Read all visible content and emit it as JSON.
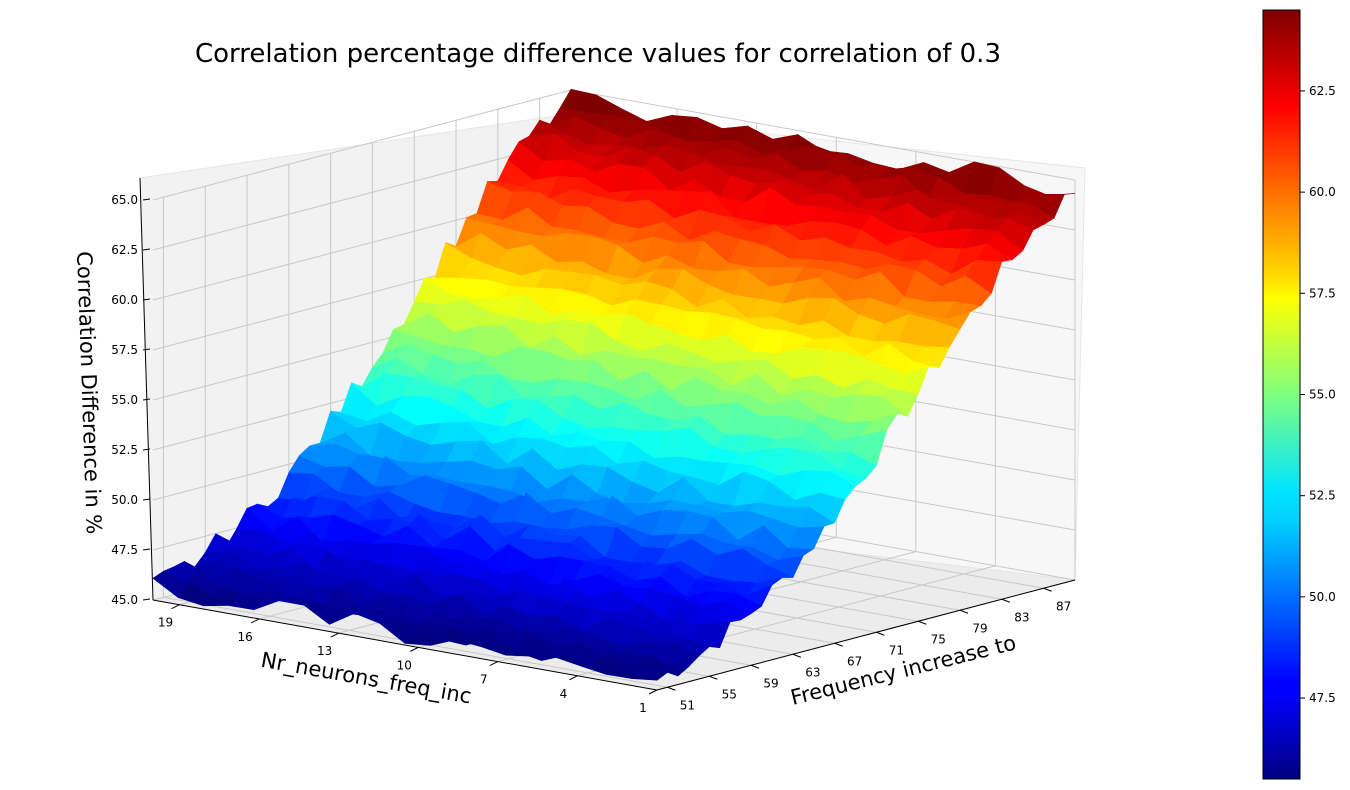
{
  "chart_data": {
    "type": "surface3d",
    "title": "Correlation percentage difference values for correlation of 0.3",
    "xlabel": "Frequency increase to",
    "ylabel": "Nr_neurons_freq_inc",
    "zlabel": "Correlation Difference in %",
    "x_ticks": [
      "51",
      "55",
      "59",
      "63",
      "67",
      "71",
      "75",
      "79",
      "83",
      "87"
    ],
    "y_ticks": [
      "1",
      "4",
      "7",
      "10",
      "13",
      "16",
      "19"
    ],
    "z_ticks": [
      "45.0",
      "47.5",
      "50.0",
      "52.5",
      "55.0",
      "57.5",
      "60.0",
      "62.5",
      "65.0"
    ],
    "x_range": [
      50,
      90
    ],
    "y_range": [
      1,
      20
    ],
    "zlim": [
      45,
      65
    ],
    "colormap": "jet",
    "grid": true,
    "colorbar": {
      "ticks": [
        "47.5",
        "50.0",
        "52.5",
        "55.0",
        "57.5",
        "60.0",
        "62.5"
      ],
      "range": [
        45.5,
        64.5
      ]
    },
    "surface_profile": {
      "x": [
        50,
        54,
        58,
        62,
        66,
        70,
        74,
        78,
        82,
        86,
        90
      ],
      "z_at_y1": [
        45.5,
        46.2,
        47.3,
        48.8,
        50.8,
        53.2,
        55.8,
        58.4,
        60.8,
        63.0,
        64.5
      ],
      "z_at_y20": [
        45.7,
        46.4,
        47.5,
        49.0,
        51.0,
        53.4,
        56.0,
        58.6,
        61.0,
        63.2,
        64.5
      ]
    }
  }
}
